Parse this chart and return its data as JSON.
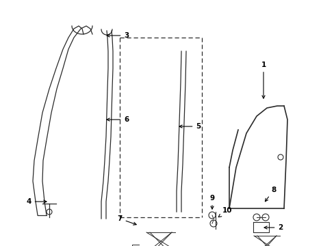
{
  "background_color": "#ffffff",
  "line_color": "#2a2a2a",
  "label_color": "#000000",
  "figsize": [
    4.89,
    3.6
  ],
  "dpi": 100,
  "xlim": [
    0,
    489
  ],
  "ylim": [
    0,
    360
  ]
}
